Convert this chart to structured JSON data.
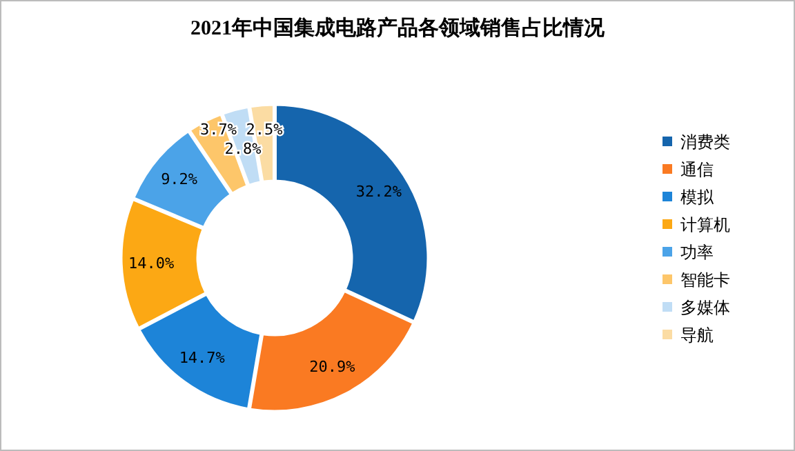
{
  "chart_data": {
    "type": "donut",
    "title": "2021年中国集成电路产品各领域销售占比情况",
    "categories": [
      "消费类",
      "通信",
      "模拟",
      "计算机",
      "功率",
      "智能卡",
      "多媒体",
      "导航"
    ],
    "values": [
      32.2,
      20.9,
      14.7,
      14.0,
      9.2,
      3.7,
      2.8,
      2.5
    ],
    "value_labels": [
      "32.2%",
      "20.9%",
      "14.7%",
      "14.0%",
      "9.2%",
      "3.7%",
      "2.8%",
      "2.5%"
    ],
    "colors": [
      "#1565ad",
      "#fa7a22",
      "#1d84d8",
      "#fca814",
      "#4ba3e8",
      "#fdc66a",
      "#c0ddf5",
      "#fbdca3"
    ],
    "legend": "right"
  }
}
